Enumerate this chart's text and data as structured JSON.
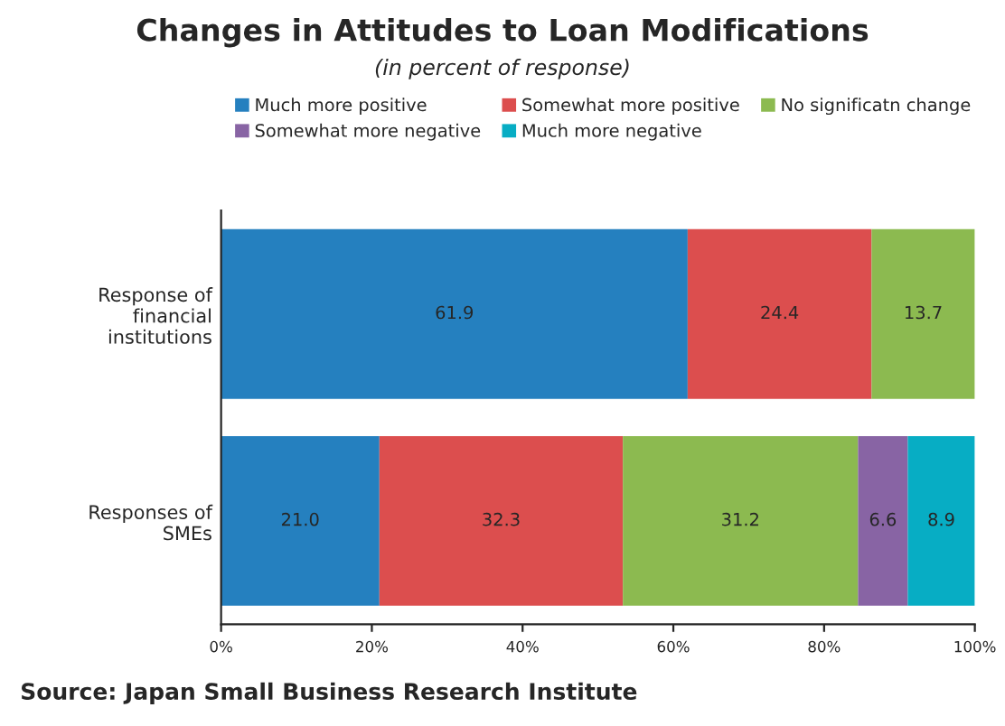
{
  "chart_data": {
    "type": "bar",
    "orientation": "horizontal",
    "stacked": true,
    "title": "Changes in Attitudes to Loan Modifications",
    "subtitle": "(in percent of response)",
    "categories": [
      "Response of\nfinancial\ninstitutions",
      "Responses of\nSMEs"
    ],
    "series": [
      {
        "name": "Much more positive",
        "color": "#2580bf",
        "values": [
          61.9,
          21.0
        ],
        "value_labels": [
          "61.9",
          "21.0"
        ]
      },
      {
        "name": "Somewhat more positive",
        "color": "#dc4e4e",
        "values": [
          24.4,
          32.3
        ],
        "value_labels": [
          "24.4",
          "32.3"
        ]
      },
      {
        "name": "No significatn change",
        "color": "#8cba50",
        "values": [
          13.7,
          31.2
        ],
        "value_labels": [
          "13.7",
          "31.2"
        ]
      },
      {
        "name": "Somewhat more negative",
        "color": "#8864a4",
        "values": [
          null,
          6.6
        ],
        "value_labels": [
          null,
          "6.6"
        ]
      },
      {
        "name": "Much more negative",
        "color": "#07adc4",
        "values": [
          null,
          8.9
        ],
        "value_labels": [
          null,
          "8.9"
        ]
      }
    ],
    "xlim": [
      0,
      100
    ],
    "xticks": [
      {
        "value": 0,
        "label": "0%"
      },
      {
        "value": 20,
        "label": "20%"
      },
      {
        "value": 40,
        "label": "40%"
      },
      {
        "value": 60,
        "label": "60%"
      },
      {
        "value": 80,
        "label": "80%"
      },
      {
        "value": 100,
        "label": "100%"
      }
    ],
    "grid": false,
    "legend": "top",
    "annotations": [
      "Source: Japan Small Business Research Institute"
    ]
  }
}
